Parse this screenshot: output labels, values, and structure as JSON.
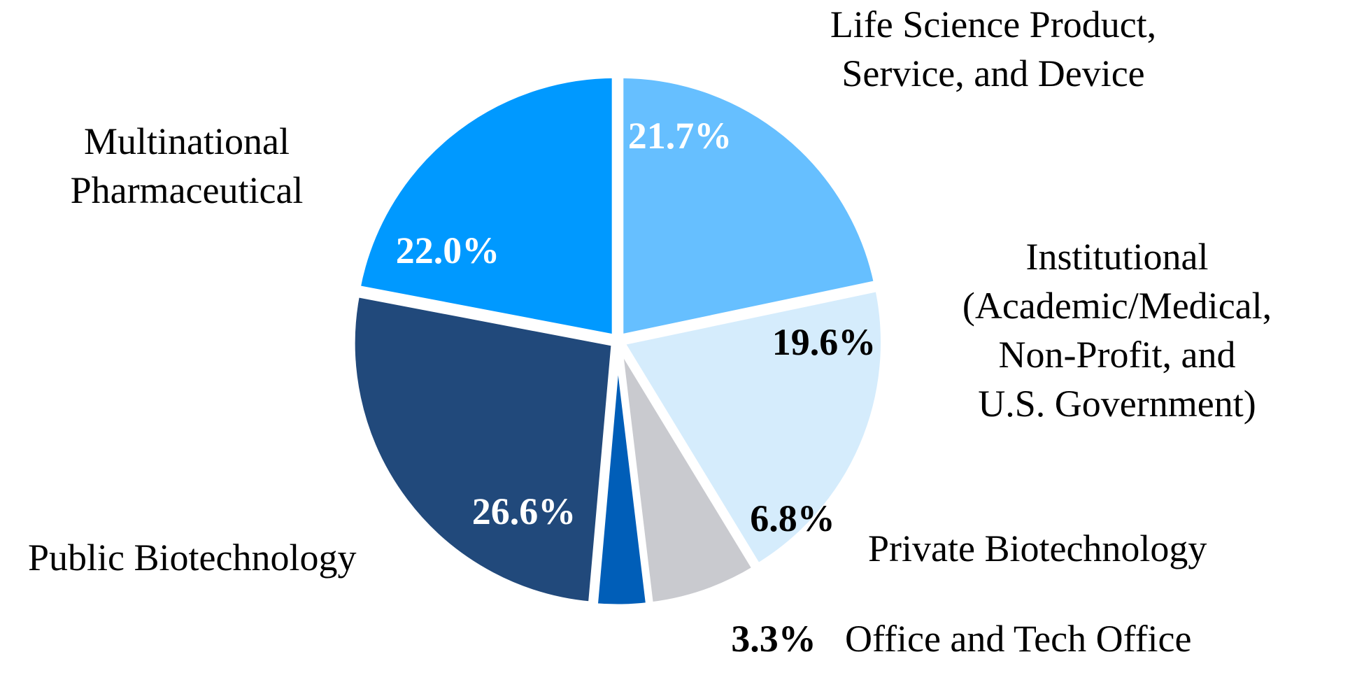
{
  "chart_data": {
    "type": "pie",
    "title": "",
    "start": "12 o'clock, clockwise, first slice ends at 12 o'clock",
    "slices": [
      {
        "name": "Multinational Pharmaceutical",
        "label_lines": [
          "Multinational",
          "Pharmaceutical"
        ],
        "value": 22.0,
        "display": "22.0%",
        "color": "#0099ff",
        "value_color": "#ffffff"
      },
      {
        "name": "Life Science Product, Service, and Device",
        "label_lines": [
          "Life Science Product,",
          "Service, and Device"
        ],
        "value": 21.7,
        "display": "21.7%",
        "color": "#66bfff",
        "value_color": "#ffffff"
      },
      {
        "name": "Institutional (Academic/Medical, Non-Profit, and U.S. Government)",
        "label_lines": [
          "Institutional",
          "(Academic/Medical,",
          "Non-Profit, and",
          "U.S. Government)"
        ],
        "value": 19.6,
        "display": "19.6%",
        "color": "#d5ecfc",
        "value_color": "#000000"
      },
      {
        "name": "Private Biotechnology",
        "label_lines": [
          "Private Biotechnology"
        ],
        "value": 6.8,
        "display": "6.8%",
        "color": "#c9cacf",
        "value_color": "#000000"
      },
      {
        "name": "Office and Tech Office",
        "label_lines": [
          "Office and Tech Office"
        ],
        "value": 3.3,
        "display": "3.3%",
        "color": "#005eb8",
        "value_color": "#000000",
        "value_outside": true
      },
      {
        "name": "Public Biotechnology",
        "label_lines": [
          "Public Biotechnology"
        ],
        "value": 26.6,
        "display": "26.6%",
        "color": "#21497b",
        "value_color": "#ffffff"
      }
    ]
  }
}
